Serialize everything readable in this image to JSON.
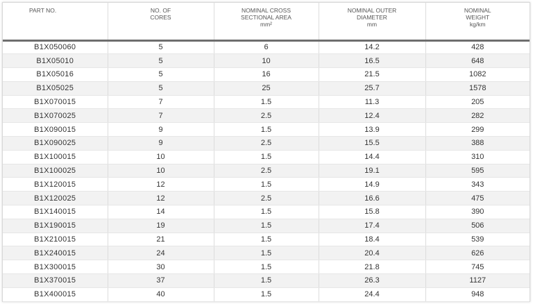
{
  "table": {
    "headers": [
      {
        "lines": [
          "PART NO."
        ]
      },
      {
        "lines": [
          "NO. OF",
          "CORES"
        ]
      },
      {
        "lines": [
          "NOMINAL CROSS",
          "SECTIONAL AREA",
          "mm²"
        ]
      },
      {
        "lines": [
          "NOMINAL OUTER",
          "DIAMETER",
          "mm"
        ]
      },
      {
        "lines": [
          "NOMINAL",
          "WEIGHT",
          "kg/km"
        ]
      }
    ],
    "rows": [
      [
        "B1X050060",
        "5",
        "6",
        "14.2",
        "428"
      ],
      [
        "B1X05010",
        "5",
        "10",
        "16.5",
        "648"
      ],
      [
        "B1X05016",
        "5",
        "16",
        "21.5",
        "1082"
      ],
      [
        "B1X05025",
        "5",
        "25",
        "25.7",
        "1578"
      ],
      [
        "B1X070015",
        "7",
        "1.5",
        "11.3",
        "205"
      ],
      [
        "B1X070025",
        "7",
        "2.5",
        "12.4",
        "282"
      ],
      [
        "B1X090015",
        "9",
        "1.5",
        "13.9",
        "299"
      ],
      [
        "B1X090025",
        "9",
        "2.5",
        "15.5",
        "388"
      ],
      [
        "B1X100015",
        "10",
        "1.5",
        "14.4",
        "310"
      ],
      [
        "B1X100025",
        "10",
        "2.5",
        "19.1",
        "595"
      ],
      [
        "B1X120015",
        "12",
        "1.5",
        "14.9",
        "343"
      ],
      [
        "B1X120025",
        "12",
        "2.5",
        "16.6",
        "475"
      ],
      [
        "B1X140015",
        "14",
        "1.5",
        "15.8",
        "390"
      ],
      [
        "B1X190015",
        "19",
        "1.5",
        "17.4",
        "506"
      ],
      [
        "B1X210015",
        "21",
        "1.5",
        "18.4",
        "539"
      ],
      [
        "B1X240015",
        "24",
        "1.5",
        "20.4",
        "626"
      ],
      [
        "B1X300015",
        "30",
        "1.5",
        "21.8",
        "745"
      ],
      [
        "B1X370015",
        "37",
        "1.5",
        "26.3",
        "1127"
      ],
      [
        "B1X400015",
        "40",
        "1.5",
        "24.4",
        "948"
      ]
    ]
  }
}
